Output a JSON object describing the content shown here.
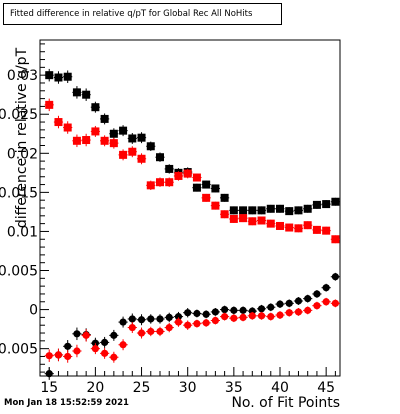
{
  "title": "Fitted difference in relative q/pT for Global Rec All NoHits",
  "timestamp": "Mon Jan 18 15:52:59 2021",
  "chart_data": {
    "type": "scatter",
    "title": "Fitted difference in relative q/pT for Global Rec All NoHits",
    "xlabel": "No. of Fit Points",
    "ylabel": "difference in relative q/pT",
    "xlim": [
      14,
      46.5
    ],
    "ylim": [
      -0.0085,
      0.0345
    ],
    "x_ticks": [
      15,
      20,
      25,
      30,
      35,
      40,
      45
    ],
    "y_ticks": [
      -0.005,
      0,
      0.005,
      0.01,
      0.015,
      0.02,
      0.025,
      0.03
    ],
    "y_tick_labels": [
      "-0.005",
      "0",
      "0.005",
      "0.01",
      "0.015",
      "0.02",
      "0.025",
      "0.03"
    ],
    "series": [
      {
        "marker": "square",
        "color": "#000000",
        "x": [
          15,
          16,
          17,
          18,
          19,
          20,
          21,
          22,
          23,
          24,
          25,
          26,
          27,
          28,
          29,
          30,
          31,
          32,
          33,
          34,
          35,
          36,
          37,
          38,
          39,
          40,
          41,
          42,
          43,
          44,
          45,
          46
        ],
        "y": [
          0.03,
          0.0297,
          0.0298,
          0.0278,
          0.0275,
          0.0259,
          0.0244,
          0.0225,
          0.0229,
          0.0219,
          0.022,
          0.0209,
          0.0195,
          0.018,
          0.0175,
          0.0176,
          0.0156,
          0.016,
          0.0155,
          0.0143,
          0.0127,
          0.0127,
          0.0127,
          0.0127,
          0.0129,
          0.0129,
          0.0126,
          0.0127,
          0.0129,
          0.0134,
          0.0135,
          0.0138
        ],
        "yerr": [
          0.0008,
          0.0008,
          0.0008,
          0.0008,
          0.0008,
          0.0007,
          0.0007,
          0.0007,
          0.0007,
          0.0007,
          0.0007,
          0.0006,
          0.0006,
          0.0006,
          0.0006,
          0.0006,
          0.0005,
          0.0005,
          0.0005,
          0.0005,
          0.0005,
          0.0005,
          0.0005,
          0.0005,
          0.0005,
          0.0005,
          0.0005,
          0.0005,
          0.0005,
          0.0005,
          0.0005,
          0.0005
        ]
      },
      {
        "marker": "square",
        "color": "#ff0000",
        "x": [
          15,
          16,
          17,
          18,
          19,
          20,
          21,
          22,
          23,
          24,
          25,
          26,
          27,
          28,
          29,
          30,
          31,
          32,
          33,
          34,
          35,
          36,
          37,
          38,
          39,
          40,
          41,
          42,
          43,
          44,
          45,
          46
        ],
        "y": [
          0.0262,
          0.024,
          0.0233,
          0.0216,
          0.0217,
          0.0228,
          0.0216,
          0.0213,
          0.0198,
          0.0202,
          0.0193,
          0.0159,
          0.0163,
          0.0163,
          0.0171,
          0.0174,
          0.0169,
          0.0143,
          0.0133,
          0.0122,
          0.0116,
          0.0117,
          0.0113,
          0.0114,
          0.011,
          0.0107,
          0.0105,
          0.0104,
          0.0108,
          0.0102,
          0.0101,
          0.009
        ],
        "yerr": [
          0.0008,
          0.0008,
          0.0008,
          0.0008,
          0.0008,
          0.0007,
          0.0007,
          0.0007,
          0.0007,
          0.0007,
          0.0007,
          0.0006,
          0.0006,
          0.0006,
          0.0006,
          0.0006,
          0.0005,
          0.0005,
          0.0005,
          0.0005,
          0.0005,
          0.0005,
          0.0005,
          0.0005,
          0.0005,
          0.0005,
          0.0005,
          0.0005,
          0.0005,
          0.0005,
          0.0005,
          0.0005
        ]
      },
      {
        "marker": "circle",
        "color": "#000000",
        "x": [
          15,
          16,
          17,
          18,
          19,
          20,
          21,
          22,
          23,
          24,
          25,
          26,
          27,
          28,
          29,
          30,
          31,
          32,
          33,
          34,
          35,
          36,
          37,
          38,
          39,
          40,
          41,
          42,
          43,
          44,
          45,
          46
        ],
        "y": [
          -0.0082,
          -0.0058,
          -0.0047,
          -0.0031,
          -0.0032,
          -0.0043,
          -0.0042,
          -0.0033,
          -0.0016,
          -0.0012,
          -0.0013,
          -0.0012,
          -0.0012,
          -0.001,
          -0.0009,
          -0.0004,
          -0.0005,
          -0.0006,
          -0.0003,
          0.0,
          -0.0001,
          -0.0001,
          -0.0002,
          0.0001,
          0.0003,
          0.0007,
          0.0008,
          0.0011,
          0.0014,
          0.002,
          0.0028,
          0.0042
        ],
        "yerr": [
          0.0008,
          0.0008,
          0.0008,
          0.0008,
          0.0008,
          0.0007,
          0.0007,
          0.0007,
          0.0007,
          0.0007,
          0.0007,
          0.0006,
          0.0006,
          0.0006,
          0.0006,
          0.0006,
          0.0005,
          0.0005,
          0.0005,
          0.0005,
          0.0005,
          0.0005,
          0.0005,
          0.0005,
          0.0005,
          0.0005,
          0.0005,
          0.0005,
          0.0005,
          0.0005,
          0.0005,
          0.0005
        ]
      },
      {
        "marker": "circle",
        "color": "#ff0000",
        "x": [
          15,
          16,
          17,
          18,
          19,
          20,
          21,
          22,
          23,
          24,
          25,
          26,
          27,
          28,
          29,
          30,
          31,
          32,
          33,
          34,
          35,
          36,
          37,
          38,
          39,
          40,
          41,
          42,
          43,
          44,
          45,
          46
        ],
        "y": [
          -0.0059,
          -0.0058,
          -0.006,
          -0.0053,
          -0.0033,
          -0.005,
          -0.0056,
          -0.0061,
          -0.0045,
          -0.0023,
          -0.003,
          -0.0028,
          -0.0028,
          -0.0023,
          -0.0016,
          -0.002,
          -0.0018,
          -0.0017,
          -0.0014,
          -0.0009,
          -0.0011,
          -0.001,
          -0.0008,
          -0.0008,
          -0.0009,
          -0.0007,
          -0.0004,
          -0.0003,
          -0.0001,
          0.0005,
          0.001,
          0.0008
        ],
        "yerr": [
          0.0008,
          0.0008,
          0.0008,
          0.0008,
          0.0008,
          0.0007,
          0.0007,
          0.0007,
          0.0007,
          0.0007,
          0.0007,
          0.0006,
          0.0006,
          0.0006,
          0.0006,
          0.0006,
          0.0005,
          0.0005,
          0.0005,
          0.0005,
          0.0005,
          0.0005,
          0.0005,
          0.0005,
          0.0005,
          0.0005,
          0.0005,
          0.0005,
          0.0005,
          0.0005,
          0.0005,
          0.0005
        ]
      }
    ]
  }
}
